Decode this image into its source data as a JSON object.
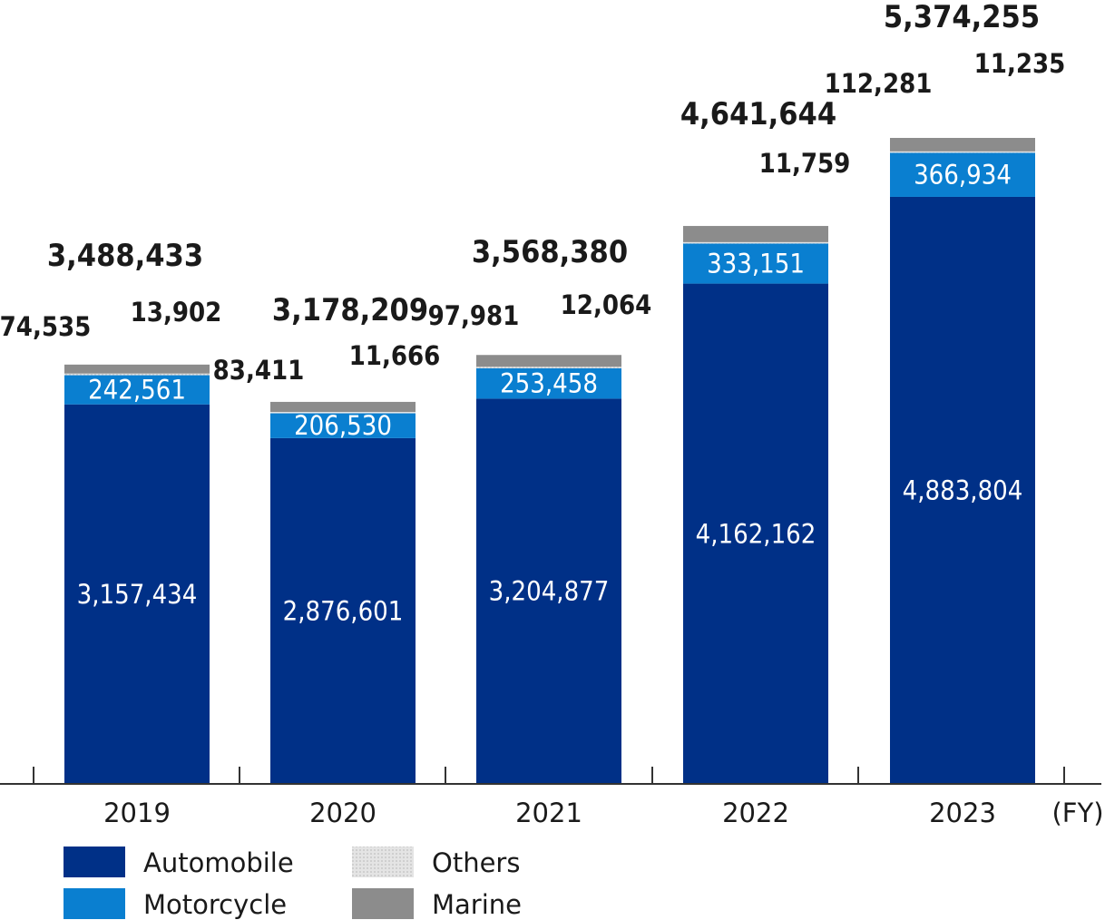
{
  "chart_data": {
    "type": "bar",
    "stacked": true,
    "categories": [
      "2019",
      "2020",
      "2021",
      "2022",
      "2023"
    ],
    "xlabel": "(FY)",
    "ylabel": "",
    "ylim": [
      0,
      5600000
    ],
    "grid": false,
    "legend_position": "bottom-left",
    "series": [
      {
        "name": "Automobile",
        "color": "#003087",
        "values": [
          3157434,
          2876601,
          3204877,
          4162162,
          4883804
        ],
        "labels": [
          "3,157,434",
          "2,876,601",
          "3,204,877",
          "4,162,162",
          "4,883,804"
        ]
      },
      {
        "name": "Motorcycle",
        "color": "#0a7fd0",
        "values": [
          242561,
          206530,
          253458,
          333151,
          366934
        ],
        "labels": [
          "242,561",
          "206,530",
          "253,458",
          "333,151",
          "366,934"
        ]
      },
      {
        "name": "Others",
        "color": "#d9d9d9",
        "values": [
          13902,
          11666,
          12064,
          11759,
          11235
        ],
        "labels": [
          "13,902",
          "11,666",
          "12,064",
          "11,759",
          "11,235"
        ]
      },
      {
        "name": "Marine",
        "color": "#8c8c8c",
        "values": [
          74535,
          83411,
          97981,
          134572,
          112281
        ],
        "labels": [
          "74,535",
          "83,411",
          "97,981",
          "",
          "112,281"
        ]
      }
    ],
    "totals": [
      3488433,
      3178209,
      3568380,
      4641644,
      5374255
    ],
    "total_labels": [
      "3,488,433",
      "3,178,209",
      "3,568,380",
      "4,641,644",
      "5,374,255"
    ],
    "legend": {
      "items": [
        {
          "label": "Automobile",
          "color": "#003087"
        },
        {
          "label": "Motorcycle",
          "color": "#0a7fd0"
        },
        {
          "label": "Others",
          "color": "#d9d9d9"
        },
        {
          "label": "Marine",
          "color": "#8c8c8c"
        }
      ]
    }
  }
}
